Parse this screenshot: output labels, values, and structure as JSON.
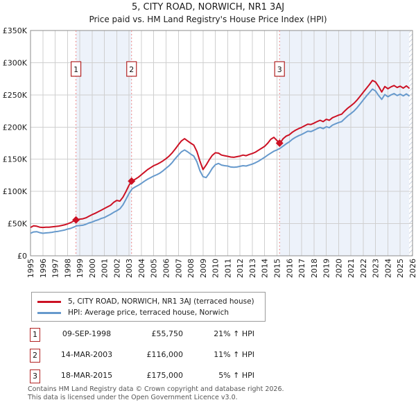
{
  "title": "5, CITY ROAD, NORWICH, NR1 3AJ",
  "subtitle": "Price paid vs. HM Land Registry's House Price Index (HPI)",
  "legend": [
    {
      "label": "5, CITY ROAD, NORWICH, NR1 3AJ (terraced house)",
      "color": "#cc1124"
    },
    {
      "label": "HPI: Average price, terraced house, Norwich",
      "color": "#6699cc"
    }
  ],
  "transactions": [
    {
      "num": "1",
      "date": "09-SEP-1998",
      "price": "£55,750",
      "hpi": "21% ↑ HPI"
    },
    {
      "num": "2",
      "date": "14-MAR-2003",
      "price": "£116,000",
      "hpi": "11% ↑ HPI"
    },
    {
      "num": "3",
      "date": "18-MAR-2015",
      "price": "£175,000",
      "hpi": "5% ↑ HPI"
    }
  ],
  "footer": {
    "line1": "Contains HM Land Registry data © Crown copyright and database right 2026.",
    "line2": "This data is licensed under the Open Government Licence v3.0."
  },
  "chart_data": {
    "type": "line",
    "xlabel": "",
    "ylabel": "",
    "xlim": [
      1995,
      2026
    ],
    "ylim": [
      0,
      350
    ],
    "grid": true,
    "legend_position": "below",
    "band_color": "#edf2fa",
    "grid_color": "#cfcfcf",
    "border_color": "#8c8c8c",
    "dash_color": "#ee8888",
    "marker_box_border": "#b22222",
    "yticks": [
      {
        "v": 350,
        "label": "£350K"
      },
      {
        "v": 300,
        "label": "£300K"
      },
      {
        "v": 250,
        "label": "£250K"
      },
      {
        "v": 200,
        "label": "£200K"
      },
      {
        "v": 150,
        "label": "£150K"
      },
      {
        "v": 100,
        "label": "£100K"
      },
      {
        "v": 50,
        "label": "£50K"
      },
      {
        "v": 0,
        "label": "£0"
      }
    ],
    "xticks": [
      1995,
      1996,
      1997,
      1998,
      1999,
      2000,
      2001,
      2002,
      2003,
      2004,
      2005,
      2006,
      2007,
      2008,
      2009,
      2010,
      2011,
      2012,
      2013,
      2014,
      2015,
      2016,
      2017,
      2018,
      2019,
      2020,
      2021,
      2022,
      2023,
      2024,
      2025,
      2026
    ],
    "bands": [
      [
        1998.69,
        2003.2
      ],
      [
        2015.21,
        2025.72
      ]
    ],
    "hatch": [
      2025.72,
      2026
    ],
    "sales": [
      {
        "n": "1",
        "year": 1998.69,
        "price_k": 55.75
      },
      {
        "n": "2",
        "year": 2003.2,
        "price_k": 116
      },
      {
        "n": "3",
        "year": 2015.21,
        "price_k": 175
      }
    ],
    "x": [
      1995,
      1995.25,
      1995.5,
      1995.75,
      1996,
      1996.25,
      1996.5,
      1996.75,
      1997,
      1997.25,
      1997.5,
      1997.75,
      1998,
      1998.25,
      1998.5,
      1998.75,
      1999,
      1999.25,
      1999.5,
      1999.75,
      2000,
      2000.25,
      2000.5,
      2000.75,
      2001,
      2001.25,
      2001.5,
      2001.75,
      2002,
      2002.25,
      2002.5,
      2002.75,
      2003,
      2003.25,
      2003.5,
      2003.75,
      2004,
      2004.25,
      2004.5,
      2004.75,
      2005,
      2005.25,
      2005.5,
      2005.75,
      2006,
      2006.25,
      2006.5,
      2006.75,
      2007,
      2007.25,
      2007.5,
      2007.75,
      2008,
      2008.25,
      2008.5,
      2008.75,
      2009,
      2009.25,
      2009.5,
      2009.75,
      2010,
      2010.25,
      2010.5,
      2010.75,
      2011,
      2011.25,
      2011.5,
      2011.75,
      2012,
      2012.25,
      2012.5,
      2012.75,
      2013,
      2013.25,
      2013.5,
      2013.75,
      2014,
      2014.25,
      2014.5,
      2014.75,
      2015,
      2015.25,
      2015.5,
      2015.75,
      2016,
      2016.25,
      2016.5,
      2016.75,
      2017,
      2017.25,
      2017.5,
      2017.75,
      2018,
      2018.25,
      2018.5,
      2018.75,
      2019,
      2019.25,
      2019.5,
      2019.75,
      2020,
      2020.25,
      2020.5,
      2020.75,
      2021,
      2021.25,
      2021.5,
      2021.75,
      2022,
      2022.25,
      2022.5,
      2022.75,
      2023,
      2023.25,
      2023.5,
      2023.75,
      2024,
      2024.25,
      2024.5,
      2024.75,
      2025,
      2025.25,
      2025.5,
      2025.75
    ],
    "series": [
      {
        "name": "5, CITY ROAD, NORWICH, NR1 3AJ (terraced house)",
        "color": "#cc1124",
        "values": [
          44,
          46.5,
          46,
          44.5,
          44,
          44.5,
          44.5,
          45,
          45.5,
          46,
          47,
          48,
          49.5,
          51.5,
          54,
          56,
          57,
          57.5,
          59,
          61.5,
          64,
          66,
          68.5,
          71,
          73.5,
          76,
          78.5,
          83,
          86,
          85,
          91,
          100,
          110,
          116.5,
          119,
          122,
          126,
          130,
          134,
          137,
          140,
          142,
          144.5,
          147.5,
          151,
          155,
          160,
          166,
          172.5,
          178.5,
          182,
          178.5,
          175,
          172,
          162,
          147,
          134,
          141,
          149,
          156,
          160,
          159.5,
          156.5,
          155.5,
          154.5,
          153.5,
          153,
          154,
          155,
          156.5,
          155.5,
          157.5,
          159,
          161,
          164,
          167,
          170,
          175,
          181,
          184,
          179,
          175,
          182,
          186,
          188,
          192,
          195,
          197.5,
          199.5,
          202,
          204.5,
          204,
          206,
          208.5,
          210.5,
          208.5,
          212,
          210.5,
          214.5,
          216.5,
          218.5,
          220,
          225,
          229.5,
          233,
          237,
          242,
          248,
          254,
          260,
          266,
          272.5,
          270,
          263,
          254.5,
          263,
          259.5,
          262.5,
          264.5,
          261.5,
          263.5,
          260.5,
          264,
          260
        ]
      },
      {
        "name": "HPI: Average price, terraced house, Norwich",
        "color": "#6699cc",
        "values": [
          35,
          37,
          37.5,
          36,
          35,
          35.5,
          36,
          36.5,
          37.5,
          38,
          39,
          40,
          41.5,
          42.5,
          44.5,
          46.5,
          47,
          47.5,
          49,
          51,
          52.5,
          54.5,
          56,
          58,
          59.5,
          62,
          64.5,
          67.5,
          70,
          73,
          79,
          88,
          97,
          104,
          107,
          109.5,
          112.5,
          116,
          119,
          121.5,
          124,
          126,
          128.5,
          132,
          136,
          140,
          145,
          151,
          156.5,
          161.5,
          164.5,
          161.5,
          158,
          155,
          146,
          132,
          123,
          121.5,
          128,
          136,
          141.5,
          143.5,
          141,
          140,
          139.5,
          138,
          137.5,
          138,
          139,
          140,
          139.5,
          141,
          142.5,
          144.5,
          147,
          150,
          153,
          156.5,
          159.5,
          162.5,
          164.5,
          167,
          170.5,
          174,
          177,
          181,
          184,
          186.5,
          188.5,
          191,
          193.5,
          193,
          195,
          197.5,
          199.5,
          197.5,
          200.5,
          199,
          203,
          205,
          207,
          208.5,
          213,
          217.5,
          221,
          225,
          230,
          236,
          242,
          248,
          253.5,
          259,
          256,
          249,
          243,
          250.5,
          247,
          250,
          252,
          249,
          251,
          248.5,
          251.5,
          248
        ]
      }
    ]
  }
}
